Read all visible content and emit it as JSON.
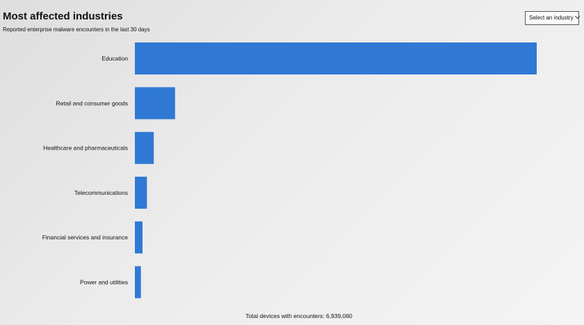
{
  "header": {
    "title": "Most affected industries",
    "subtitle": "Reported enterprise malware encounters in the last 30 days"
  },
  "filter": {
    "label": "Select an industry",
    "icon": "chevron-down-icon"
  },
  "footer": {
    "text": "Total devices with encounters: 6,939,060"
  },
  "colors": {
    "bar": "#2f79d4"
  },
  "chart_data": {
    "type": "bar",
    "orientation": "horizontal",
    "title": "Most affected industries",
    "subtitle": "Reported enterprise malware encounters in the last 30 days",
    "categories": [
      "Education",
      "Retail and consumer goods",
      "Healthcare and pharmaceuticals",
      "Telecommunications",
      "Financial services and insurance",
      "Power and utilities"
    ],
    "values": [
      100,
      10,
      4.7,
      3,
      1.9,
      1.5
    ],
    "value_unit": "relative share (largest = 100)",
    "xlim": [
      0,
      100
    ],
    "grid": false,
    "legend": "none",
    "axis_labels_visible": false
  }
}
